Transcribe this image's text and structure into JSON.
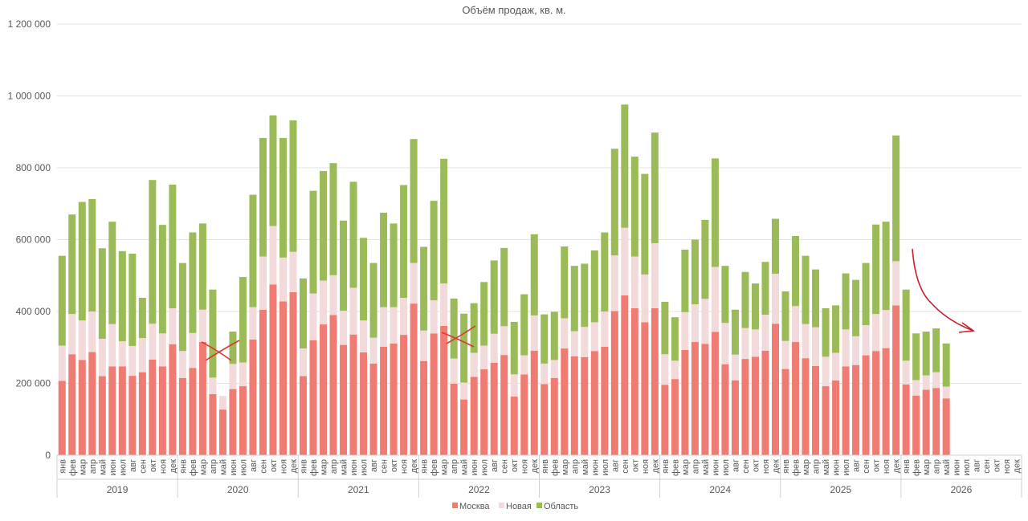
{
  "chart_data": {
    "type": "bar",
    "stacked": true,
    "title": "Объём продаж, кв. м.",
    "xlabel": "",
    "ylabel": "",
    "ylim": [
      0,
      1200000
    ],
    "yticks": [
      0,
      200000,
      400000,
      600000,
      800000,
      1000000,
      1200000
    ],
    "ytick_labels": [
      "0",
      "200 000",
      "400 000",
      "600 000",
      "800 000",
      "1 000 000",
      "1 200 000"
    ],
    "grid": true,
    "legend_position": "bottom",
    "month_labels": [
      "янв",
      "фев",
      "мар",
      "апр",
      "май",
      "июн",
      "июл",
      "авг",
      "сен",
      "окт",
      "ноя",
      "дек"
    ],
    "years": [
      "2019",
      "2020",
      "2021",
      "2022",
      "2023",
      "2024",
      "2025",
      "2026"
    ],
    "series": [
      {
        "name": "Москва",
        "color": "#ef7b72",
        "values": [
          207000,
          281000,
          265000,
          287000,
          220000,
          247000,
          247000,
          221000,
          231000,
          266000,
          247000,
          309000,
          215000,
          243000,
          315000,
          170000,
          127000,
          184000,
          192000,
          322000,
          405000,
          475000,
          428000,
          454000,
          220000,
          320000,
          364000,
          390000,
          307000,
          336000,
          286000,
          255000,
          302000,
          311000,
          335000,
          422000,
          262000,
          339000,
          360000,
          199000,
          155000,
          218000,
          239000,
          257000,
          279000,
          163000,
          225000,
          291000,
          198000,
          215000,
          297000,
          275000,
          273000,
          290000,
          302000,
          401000,
          445000,
          409000,
          370000,
          409000,
          196000,
          212000,
          293000,
          315000,
          310000,
          343000,
          253000,
          208000,
          268000,
          274000,
          291000,
          366000,
          240000,
          315000,
          270000,
          248000,
          192000,
          208000,
          247000,
          251000,
          278000,
          290000,
          298000,
          417000,
          197000,
          166000,
          182000,
          187000,
          158000,
          null,
          null,
          null,
          null,
          null,
          null,
          null
        ]
      },
      {
        "name": "Новая",
        "color": "#f3dada",
        "values": [
          98000,
          112000,
          110000,
          113000,
          104000,
          118000,
          70000,
          83000,
          95000,
          100000,
          92000,
          100000,
          75000,
          97000,
          90000,
          46000,
          38000,
          70000,
          66000,
          90000,
          148000,
          163000,
          122000,
          112000,
          77000,
          130000,
          122000,
          111000,
          95000,
          130000,
          89000,
          72000,
          110000,
          101000,
          103000,
          113000,
          85000,
          92000,
          118000,
          70000,
          47000,
          67000,
          66000,
          81000,
          80000,
          62000,
          53000,
          98000,
          57000,
          50000,
          84000,
          70000,
          84000,
          80000,
          98000,
          155000,
          188000,
          144000,
          133000,
          181000,
          85000,
          51000,
          105000,
          105000,
          125000,
          181000,
          115000,
          72000,
          86000,
          76000,
          100000,
          139000,
          78000,
          100000,
          95000,
          108000,
          82000,
          77000,
          103000,
          80000,
          84000,
          103000,
          106000,
          123000,
          66000,
          43000,
          40000,
          44000,
          33000,
          null,
          null,
          null,
          null,
          null,
          null,
          null
        ]
      },
      {
        "name": "Область",
        "color": "#9bbb59",
        "values": [
          250000,
          277000,
          330000,
          313000,
          252000,
          285000,
          251000,
          257000,
          112000,
          400000,
          302000,
          344000,
          245000,
          280000,
          240000,
          245000,
          0,
          90000,
          238000,
          313000,
          330000,
          308000,
          333000,
          366000,
          195000,
          286000,
          305000,
          312000,
          251000,
          295000,
          230000,
          208000,
          263000,
          233000,
          314000,
          345000,
          233000,
          277000,
          347000,
          167000,
          192000,
          138000,
          177000,
          204000,
          218000,
          146000,
          170000,
          226000,
          137000,
          134000,
          200000,
          182000,
          176000,
          200000,
          220000,
          297000,
          343000,
          278000,
          280000,
          308000,
          146000,
          121000,
          174000,
          180000,
          220000,
          302000,
          159000,
          125000,
          156000,
          128000,
          147000,
          153000,
          138000,
          195000,
          190000,
          161000,
          135000,
          132000,
          156000,
          157000,
          173000,
          249000,
          246000,
          350000,
          198000,
          130000,
          122000,
          122000,
          120000,
          null,
          null,
          null,
          null,
          null,
          null,
          null
        ]
      }
    ],
    "annotations": [
      {
        "type": "cross",
        "color": "#d9392b",
        "note": "апр–июн 2020"
      },
      {
        "type": "cross",
        "color": "#d9392b",
        "note": "апр–июн 2022"
      },
      {
        "type": "arrow",
        "color": "#c8202a",
        "note": "после 2025"
      }
    ]
  }
}
